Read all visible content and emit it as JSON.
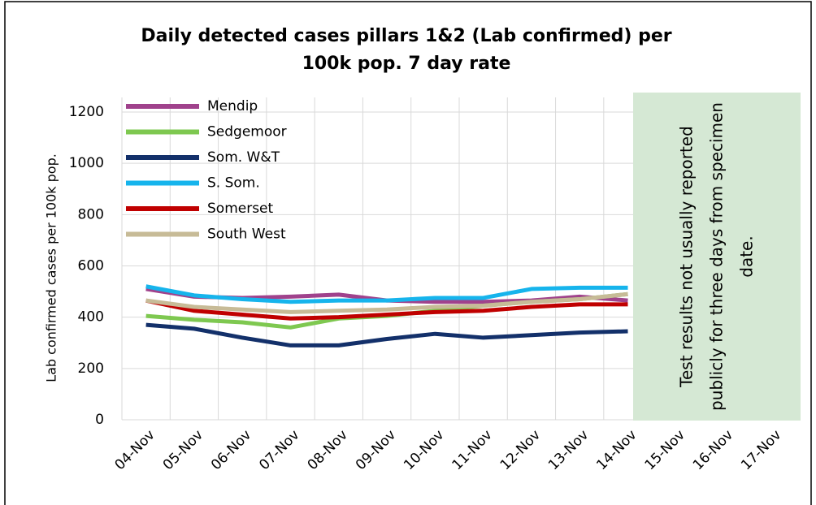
{
  "chart_data": {
    "type": "line",
    "title": "Daily detected cases pillars 1&2 (Lab confirmed) per 100k pop. 7 day rate",
    "y_label": "Lab confirmed cases per 100k pop.",
    "annotation": "Test results not usually reported publicly for three days from specimen date.",
    "categories": [
      "04-Nov",
      "05-Nov",
      "06-Nov",
      "07-Nov",
      "08-Nov",
      "09-Nov",
      "10-Nov",
      "11-Nov",
      "12-Nov",
      "13-Nov",
      "14-Nov",
      "15-Nov",
      "16-Nov",
      "17-Nov"
    ],
    "series": [
      {
        "name": "Mendip",
        "color": "#a0428c",
        "values": [
          510,
          480,
          475,
          480,
          488,
          465,
          460,
          460,
          465,
          480,
          465,
          null,
          null,
          null
        ]
      },
      {
        "name": "Sedgemoor",
        "color": "#7ec850",
        "values": [
          405,
          390,
          380,
          360,
          395,
          405,
          425,
          445,
          460,
          470,
          490,
          null,
          null,
          null
        ]
      },
      {
        "name": "Som. W&T",
        "color": "#13306a",
        "values": [
          370,
          355,
          320,
          290,
          290,
          315,
          335,
          320,
          330,
          340,
          345,
          null,
          null,
          null
        ]
      },
      {
        "name": "S. Som.",
        "color": "#16b4ec",
        "values": [
          520,
          485,
          470,
          460,
          465,
          465,
          475,
          475,
          510,
          515,
          515,
          null,
          null,
          null
        ]
      },
      {
        "name": "Somerset",
        "color": "#c00000",
        "values": [
          465,
          425,
          410,
          395,
          400,
          410,
          420,
          425,
          440,
          450,
          450,
          null,
          null,
          null
        ]
      },
      {
        "name": "South West",
        "color": "#c7bb97",
        "values": [
          465,
          440,
          430,
          420,
          425,
          430,
          440,
          445,
          460,
          470,
          490,
          null,
          null,
          null
        ]
      }
    ],
    "ylim": [
      0,
      1200
    ],
    "yticks": [
      0,
      200,
      400,
      600,
      800,
      1000,
      1200
    ],
    "grid": true
  }
}
